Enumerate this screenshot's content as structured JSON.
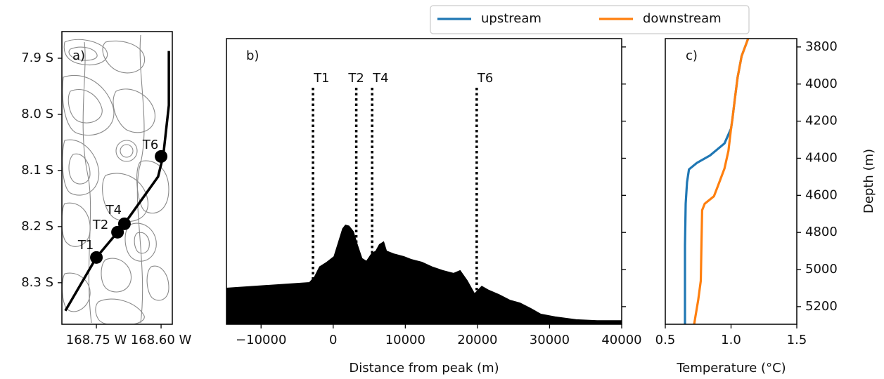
{
  "chart_data": [
    {
      "type": "map",
      "panel_label": "a)",
      "xlim": [
        -168.83,
        -168.574
      ],
      "ylim": [
        -8.374,
        -7.8525
      ],
      "xticks": [
        {
          "value": -168.75,
          "label": "168.75 W"
        },
        {
          "value": -168.6,
          "label": "168.60 W"
        }
      ],
      "yticks": [
        {
          "value": -7.9,
          "label": "7.9 S"
        },
        {
          "value": -8.0,
          "label": "8.0 S"
        },
        {
          "value": -8.1,
          "label": "8.1 S"
        },
        {
          "value": -8.2,
          "label": "8.2 S"
        },
        {
          "value": -8.3,
          "label": "8.3 S"
        }
      ],
      "track": {
        "color": "#000000",
        "x": [
          -168.822,
          -168.75,
          -168.701,
          -168.685,
          -168.607,
          -168.595,
          -168.582,
          -168.582
        ],
        "values": [
          -8.35,
          -8.255,
          -8.21,
          -8.195,
          -8.111,
          -8.074,
          -7.984,
          -7.887
        ]
      },
      "stations": {
        "labels": [
          "T1",
          "T2",
          "T4",
          "T6"
        ],
        "x": [
          -168.75,
          -168.701,
          -168.685,
          -168.6
        ],
        "values": [
          -8.255,
          -8.21,
          -8.195,
          -8.075
        ]
      }
    },
    {
      "type": "area",
      "panel_label": "b)",
      "x_label": "Distance from peak (m)",
      "color": "#000000",
      "xlim": [
        -14800,
        40000
      ],
      "ylim": [
        5295,
        3755
      ],
      "xticks": [
        {
          "value": -10000,
          "label": "−10000"
        },
        0,
        10000,
        20000,
        30000,
        40000
      ],
      "x": [
        -14800,
        -3300,
        -2600,
        -1900,
        -900,
        100,
        900,
        1300,
        1700,
        2200,
        2800,
        3400,
        4000,
        4600,
        5300,
        5900,
        6400,
        7000,
        7400,
        8400,
        9800,
        10800,
        12300,
        13700,
        15200,
        16700,
        17600,
        18600,
        19600,
        20600,
        21500,
        23000,
        24500,
        25900,
        27400,
        28800,
        30800,
        33700,
        36600,
        40000
      ],
      "values": [
        5100,
        5070,
        5040,
        4985,
        4960,
        4930,
        4830,
        4780,
        4760,
        4765,
        4795,
        4870,
        4940,
        4955,
        4915,
        4900,
        4865,
        4850,
        4900,
        4915,
        4930,
        4945,
        4960,
        4985,
        5005,
        5020,
        5005,
        5060,
        5130,
        5090,
        5110,
        5135,
        5165,
        5180,
        5210,
        5240,
        5255,
        5270,
        5275,
        5275
      ],
      "stations": {
        "labels": [
          "T1",
          "T2",
          "T4",
          "T6"
        ],
        "x": [
          -2800,
          3200,
          5400,
          19900
        ]
      }
    },
    {
      "type": "line",
      "panel_label": "c)",
      "x_label": "Temperature (°C)",
      "y_label": "Depth (m)",
      "xlim": [
        0.5,
        1.5
      ],
      "ylim": [
        5295,
        3755
      ],
      "xticks": [
        0.5,
        {
          "value": 1.0,
          "label": "1.0"
        },
        1.5
      ],
      "yticks": [
        3800,
        4000,
        4200,
        4400,
        4600,
        4800,
        5000,
        5200
      ],
      "legend": "upper right",
      "series": [
        {
          "name": "upstream",
          "color": "#1f77b4",
          "x": [
            1.13,
            1.08,
            1.05,
            1.03,
            1.01,
            1.0,
            0.95,
            0.84,
            0.74,
            0.68,
            0.665,
            0.655,
            0.65,
            0.65,
            0.65
          ],
          "values": [
            3755,
            3850,
            3965,
            4075,
            4190,
            4240,
            4320,
            4385,
            4425,
            4460,
            4530,
            4645,
            4870,
            5135,
            5295
          ]
        },
        {
          "name": "downstream",
          "color": "#ff7f0e",
          "x": [
            1.13,
            1.08,
            1.05,
            1.03,
            1.01,
            1.0,
            0.98,
            0.95,
            0.9,
            0.87,
            0.8,
            0.78,
            0.775,
            0.77,
            0.75,
            0.73,
            0.72
          ],
          "values": [
            3755,
            3850,
            3965,
            4075,
            4190,
            4240,
            4360,
            4455,
            4550,
            4605,
            4645,
            4680,
            4870,
            5060,
            5165,
            5250,
            5295
          ]
        }
      ]
    }
  ]
}
